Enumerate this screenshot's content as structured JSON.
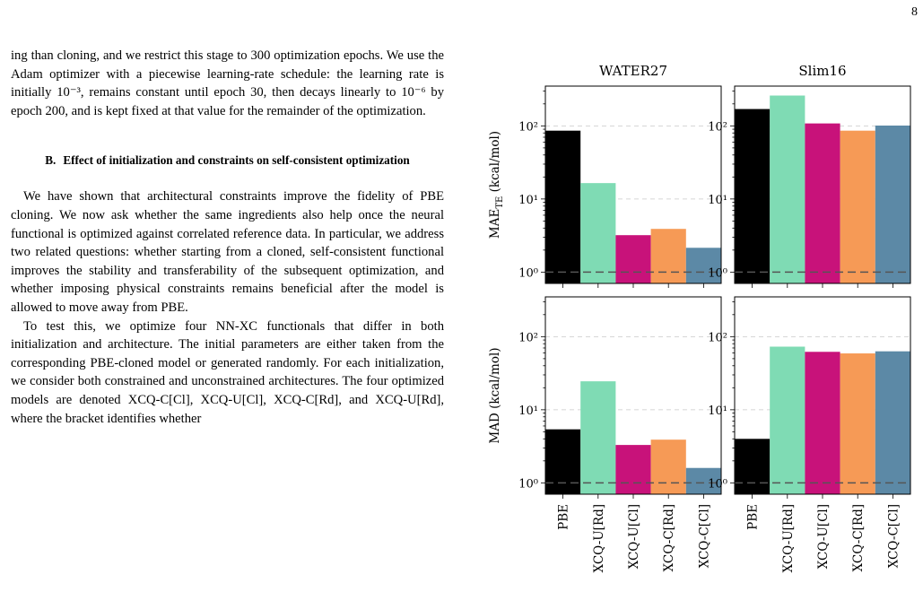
{
  "page_number": "8",
  "text": {
    "para1": "ing than cloning, and we restrict this stage to 300 optimization epochs. We use the Adam optimizer with a piecewise learning-rate schedule: the learning rate is initially 10⁻³, remains constant until epoch 30, then decays linearly to 10⁻⁶ by epoch 200, and is kept fixed at that value for the remainder of the optimization.",
    "section_number": "B.",
    "section_title": "Effect of initialization and constraints on self-consistent optimization",
    "para2": "We have shown that architectural constraints improve the fidelity of PBE cloning. We now ask whether the same ingredients also help once the neural functional is optimized against correlated reference data. In particular, we address two related questions: whether starting from a cloned, self-consistent functional improves the stability and transferability of the subsequent optimization, and whether imposing physical constraints remains beneficial after the model is allowed to move away from PBE.",
    "para3": "To test this, we optimize four NN-XC functionals that differ in both initialization and architecture. The initial parameters are either taken from the corresponding PBE-cloned model or generated randomly. For each initialization, we consider both constrained and unconstrained architectures. The four optimized models are denoted XCQ-C[Cl], XCQ-U[Cl], XCQ-C[Rd], and XCQ-U[Rd], where the bracket identifies whether"
  },
  "chart_data": {
    "type": "bar",
    "yscale": "log",
    "ylim": [
      0.7,
      350
    ],
    "reference_line": 1,
    "categories": [
      "PBE",
      "XCQ-U[Rd]",
      "XCQ-U[Cl]",
      "XCQ-C[Rd]",
      "XCQ-C[Cl]"
    ],
    "colors": [
      "#000000",
      "#7fdbb4",
      "#c8127a",
      "#f69a56",
      "#5c89a6"
    ],
    "y_tick_labels": [
      "10⁰",
      "10¹",
      "10²"
    ],
    "panels": [
      {
        "title": "WATER27",
        "ylabel": "MAE",
        "ylabel_sub": "TE",
        "ylabel_unit": "(kcal/mol)",
        "values": [
          86,
          16.5,
          3.2,
          3.9,
          2.15
        ]
      },
      {
        "title": "Slim16",
        "ylabel": "",
        "values": [
          170,
          260,
          108,
          86,
          101
        ]
      },
      {
        "title": "",
        "ylabel": "MAD (kcal/mol)",
        "values": [
          5.4,
          24.5,
          3.3,
          3.9,
          1.6
        ]
      },
      {
        "title": "",
        "ylabel": "",
        "values": [
          4.0,
          73,
          62,
          59,
          63
        ]
      }
    ]
  }
}
